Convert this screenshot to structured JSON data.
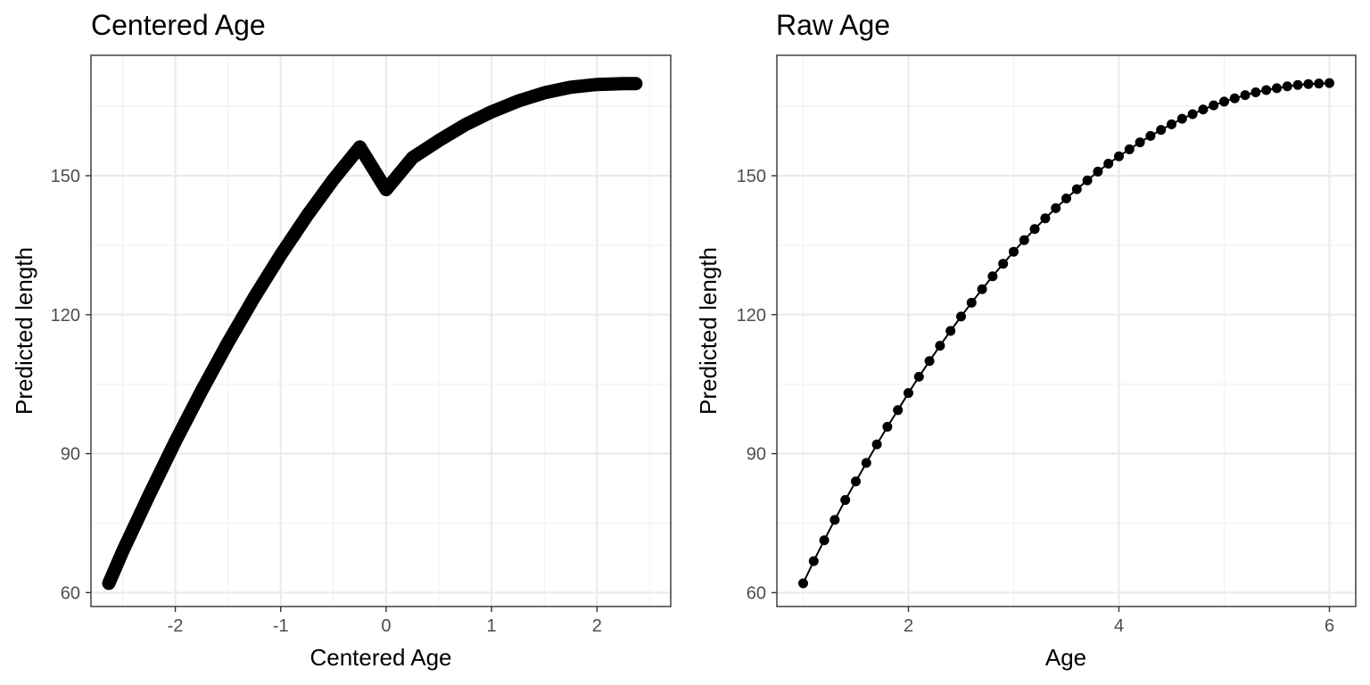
{
  "chart_data": [
    {
      "type": "scatter",
      "title": "Centered Age",
      "xlabel": "Centered Age",
      "ylabel": "Predicted length",
      "xlim": [
        -2.8,
        2.7
      ],
      "ylim": [
        57,
        176
      ],
      "x_ticks": [
        -2,
        -1,
        0,
        1,
        2
      ],
      "x_tick_labels": [
        "-2",
        "-1",
        "0",
        "1",
        "2"
      ],
      "y_ticks": [
        60,
        90,
        120,
        150
      ],
      "y_tick_labels": [
        "60",
        "90",
        "120",
        "150"
      ],
      "grid": true,
      "color": "#000000",
      "series": [
        {
          "x": [
            -2.631,
            -2.5,
            -2.25,
            -2.0,
            -1.75,
            -1.5,
            -1.25,
            -1.0,
            -0.75,
            -0.5,
            -0.25,
            0.0,
            0.25,
            0.5,
            0.75,
            1.0,
            1.25,
            1.5,
            1.75,
            2.0,
            2.25,
            2.369
          ],
          "y": [
            62.0,
            68.9,
            81.0,
            92.6,
            103.6,
            114.0,
            123.8,
            132.9,
            141.4,
            149.2,
            156.2,
            147.0,
            153.9,
            157.6,
            161.0,
            163.8,
            166.1,
            167.9,
            169.1,
            169.7,
            169.9,
            169.9
          ]
        }
      ]
    },
    {
      "type": "line",
      "title": "Raw Age",
      "xlabel": "Age",
      "ylabel": "Predicted length",
      "xlim": [
        0.75,
        6.25
      ],
      "ylim": [
        57,
        176
      ],
      "x_ticks": [
        2,
        4,
        6
      ],
      "x_tick_labels": [
        "2",
        "4",
        "6"
      ],
      "y_ticks": [
        60,
        90,
        120,
        150
      ],
      "y_tick_labels": [
        "60",
        "90",
        "120",
        "150"
      ],
      "grid": true,
      "color": "#000000",
      "markers": true,
      "series": [
        {
          "x": [
            1.0,
            1.1,
            1.2,
            1.3,
            1.4,
            1.5,
            1.6,
            1.7,
            1.8,
            1.9,
            2.0,
            2.1,
            2.2,
            2.3,
            2.4,
            2.5,
            2.6,
            2.7,
            2.8,
            2.9,
            3.0,
            3.1,
            3.2,
            3.3,
            3.4,
            3.5,
            3.6,
            3.7,
            3.8,
            3.9,
            4.0,
            4.1,
            4.2,
            4.3,
            4.4,
            4.5,
            4.6,
            4.7,
            4.8,
            4.9,
            5.0,
            5.1,
            5.2,
            5.3,
            5.4,
            5.5,
            5.6,
            5.7,
            5.8,
            5.9,
            6.0
          ],
          "y": [
            62.0,
            66.8,
            71.3,
            75.7,
            80.0,
            84.0,
            88.0,
            92.0,
            95.8,
            99.4,
            103.1,
            106.6,
            110.0,
            113.3,
            116.5,
            119.6,
            122.6,
            125.5,
            128.3,
            131.0,
            133.6,
            136.1,
            138.5,
            140.8,
            143.0,
            145.1,
            147.1,
            149.0,
            150.9,
            152.6,
            154.2,
            155.7,
            157.2,
            158.6,
            159.9,
            161.1,
            162.3,
            163.3,
            164.3,
            165.2,
            166.0,
            166.7,
            167.4,
            168.0,
            168.5,
            168.9,
            169.3,
            169.6,
            169.8,
            169.9,
            170.0
          ]
        }
      ]
    }
  ]
}
